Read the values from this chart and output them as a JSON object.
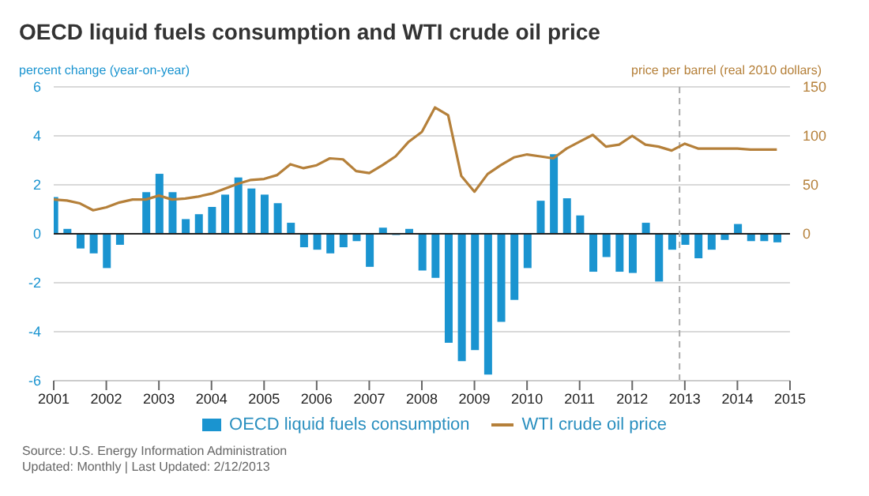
{
  "chart_data": {
    "type": "bar",
    "title": "OECD liquid fuels consumption and WTI crude oil price",
    "ylabel": "percent change (year-on-year)",
    "y2label": "price per barrel (real 2010 dollars)",
    "x": [
      2001,
      2001.25,
      2001.5,
      2001.75,
      2002,
      2002.25,
      2002.5,
      2002.75,
      2003,
      2003.25,
      2003.5,
      2003.75,
      2004,
      2004.25,
      2004.5,
      2004.75,
      2005,
      2005.25,
      2005.5,
      2005.75,
      2006,
      2006.25,
      2006.5,
      2006.75,
      2007,
      2007.25,
      2007.5,
      2007.75,
      2008,
      2008.25,
      2008.5,
      2008.75,
      2009,
      2009.25,
      2009.5,
      2009.75,
      2010,
      2010.25,
      2010.5,
      2010.75,
      2011,
      2011.25,
      2011.5,
      2011.75,
      2012,
      2012.25,
      2012.5,
      2012.75,
      2013,
      2013.25,
      2013.5,
      2013.75,
      2014,
      2014.25,
      2014.5,
      2014.75
    ],
    "series": [
      {
        "name": "OECD liquid fuels consumption",
        "color": "#1a94d0",
        "values": [
          1.5,
          0.2,
          -0.6,
          -0.8,
          -1.4,
          -0.45,
          null,
          1.7,
          2.45,
          1.7,
          0.6,
          0.8,
          1.1,
          1.6,
          2.3,
          1.85,
          1.6,
          1.25,
          0.45,
          -0.55,
          -0.65,
          -0.8,
          -0.55,
          -0.3,
          -1.35,
          0.25,
          -0.05,
          0.2,
          -1.5,
          -1.8,
          -4.45,
          -5.2,
          -4.75,
          -5.75,
          -3.6,
          -2.7,
          -1.4,
          1.35,
          3.25,
          1.45,
          0.75,
          -1.55,
          -0.95,
          -1.55,
          -1.6,
          0.45,
          -1.95,
          -0.65,
          -0.45,
          -1.0,
          -0.65,
          -0.25,
          0.4,
          -0.3,
          -0.3,
          -0.35
        ]
      },
      {
        "name": "WTI crude oil price",
        "type": "line",
        "axis": "y2",
        "color": "#b5803a",
        "values": [
          35,
          34,
          31,
          24,
          27,
          32,
          35,
          35,
          39,
          35,
          36,
          38,
          41,
          46,
          51,
          55,
          56,
          60,
          71,
          67,
          70,
          77,
          76,
          64,
          62,
          70,
          79,
          94,
          104,
          129,
          121,
          59,
          43,
          61,
          70,
          78,
          81,
          79,
          77,
          87,
          94,
          101,
          89,
          91,
          100,
          91,
          89,
          85,
          92,
          87,
          87,
          87,
          87,
          86,
          86,
          86
        ]
      }
    ],
    "xlim": [
      2001,
      2015
    ],
    "xticks": [
      2001,
      2002,
      2003,
      2004,
      2005,
      2006,
      2007,
      2008,
      2009,
      2010,
      2011,
      2012,
      2013,
      2014,
      2015
    ],
    "ylim": [
      -6,
      6
    ],
    "yticks": [
      -6,
      -4,
      -2,
      0,
      2,
      4,
      6
    ],
    "y2lim": [
      -150,
      150
    ],
    "y2ticks": [
      0,
      50,
      100,
      150
    ],
    "ref_lines": [
      {
        "axis": "x",
        "value": 2012.9,
        "color": "#aaaaaa",
        "line_style": "dashed"
      }
    ],
    "grid": "y",
    "legend": "bottom",
    "marker": "none",
    "annotations": [
      "Source: U.S. Energy Information Administration",
      "Updated: Monthly | Last Updated: 2/12/2013"
    ]
  }
}
